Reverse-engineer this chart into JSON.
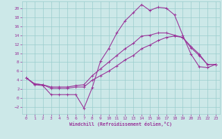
{
  "bg_color": "#cce8e8",
  "grid_color": "#99cccc",
  "line_color": "#993399",
  "xlabel": "Windchill (Refroidissement éolien,°C)",
  "xlim": [
    -0.5,
    23.5
  ],
  "ylim": [
    -3.5,
    21.5
  ],
  "xticks": [
    0,
    1,
    2,
    3,
    4,
    5,
    6,
    7,
    8,
    9,
    10,
    11,
    12,
    13,
    14,
    15,
    16,
    17,
    18,
    19,
    20,
    21,
    22,
    23
  ],
  "yticks": [
    -2,
    0,
    2,
    4,
    6,
    8,
    10,
    12,
    14,
    16,
    18,
    20
  ],
  "series1_x": [
    0,
    1,
    2,
    3,
    4,
    5,
    6,
    7,
    8,
    9,
    10,
    11,
    12,
    13,
    14,
    15,
    16,
    17,
    18,
    19,
    20,
    21,
    22,
    23
  ],
  "series1_y": [
    4.5,
    3.0,
    2.8,
    0.8,
    0.8,
    0.8,
    0.8,
    -2.2,
    2.3,
    8.2,
    11.0,
    14.5,
    17.2,
    19.0,
    20.8,
    19.5,
    20.2,
    20.0,
    18.5,
    14.0,
    9.8,
    7.0,
    6.8,
    7.5
  ],
  "series2_x": [
    0,
    1,
    2,
    3,
    4,
    5,
    6,
    7,
    8,
    9,
    10,
    11,
    12,
    13,
    14,
    15,
    16,
    17,
    18,
    19,
    20,
    21,
    22,
    23
  ],
  "series2_y": [
    4.5,
    3.2,
    3.0,
    2.5,
    2.5,
    2.5,
    2.8,
    3.0,
    5.0,
    6.5,
    8.0,
    9.5,
    11.0,
    12.2,
    13.8,
    14.0,
    14.5,
    14.5,
    14.0,
    13.5,
    11.5,
    9.8,
    7.5,
    7.5
  ],
  "series3_x": [
    0,
    1,
    2,
    3,
    4,
    5,
    6,
    7,
    8,
    9,
    10,
    11,
    12,
    13,
    14,
    15,
    16,
    17,
    18,
    19,
    20,
    21,
    22,
    23
  ],
  "series3_y": [
    4.5,
    3.2,
    3.0,
    2.2,
    2.2,
    2.2,
    2.5,
    2.5,
    4.0,
    5.0,
    6.0,
    7.2,
    8.5,
    9.5,
    11.0,
    11.8,
    12.8,
    13.5,
    13.8,
    13.5,
    11.2,
    9.5,
    7.5,
    7.5
  ]
}
